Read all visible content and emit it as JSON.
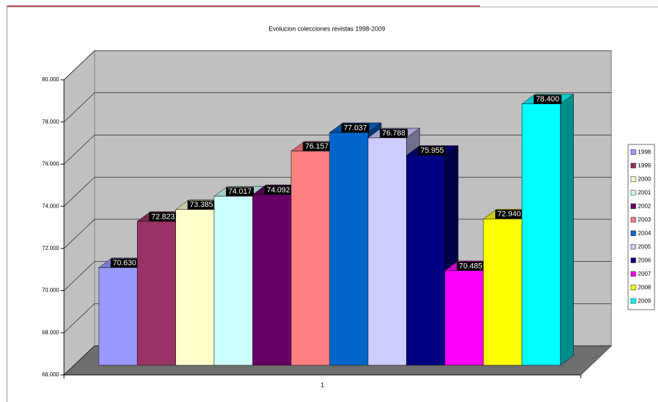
{
  "chart_data": {
    "type": "bar3d",
    "title": "Evolucion colecciones revistas 1998-2009",
    "categories": [
      "1"
    ],
    "ylim": [
      66000,
      80000
    ],
    "yticks": [
      {
        "value": 66000,
        "label": "66.000"
      },
      {
        "value": 68000,
        "label": "68.000"
      },
      {
        "value": 70000,
        "label": "70.000"
      },
      {
        "value": 72000,
        "label": "72.000"
      },
      {
        "value": 74000,
        "label": "74.000"
      },
      {
        "value": 76000,
        "label": "76.000"
      },
      {
        "value": 78000,
        "label": "78.000"
      },
      {
        "value": 80000,
        "label": "80.000"
      }
    ],
    "grid": true,
    "legend": "right",
    "series": [
      {
        "name": "1998",
        "color": "#9999ff",
        "values": [
          70630
        ],
        "value_labels": [
          "70.630"
        ]
      },
      {
        "name": "1999",
        "color": "#993366",
        "values": [
          72823
        ],
        "value_labels": [
          "72.823"
        ]
      },
      {
        "name": "2000",
        "color": "#ffffcc",
        "values": [
          73385
        ],
        "value_labels": [
          "73.385"
        ]
      },
      {
        "name": "2001",
        "color": "#ccffff",
        "values": [
          74017
        ],
        "value_labels": [
          "74.017"
        ]
      },
      {
        "name": "2002",
        "color": "#660066",
        "values": [
          74092
        ],
        "value_labels": [
          "74.092"
        ]
      },
      {
        "name": "2003",
        "color": "#ff8080",
        "values": [
          76157
        ],
        "value_labels": [
          "76.157"
        ]
      },
      {
        "name": "2004",
        "color": "#0066cc",
        "values": [
          77037
        ],
        "value_labels": [
          "77.037"
        ]
      },
      {
        "name": "2005",
        "color": "#ccccff",
        "values": [
          76788
        ],
        "value_labels": [
          "76.788"
        ]
      },
      {
        "name": "2006",
        "color": "#000080",
        "values": [
          75955
        ],
        "value_labels": [
          "75.955"
        ]
      },
      {
        "name": "2007",
        "color": "#ff00ff",
        "values": [
          70485
        ],
        "value_labels": [
          "70.485"
        ]
      },
      {
        "name": "2008",
        "color": "#ffff00",
        "values": [
          72940
        ],
        "value_labels": [
          "72.940"
        ]
      },
      {
        "name": "2009",
        "color": "#00ffff",
        "values": [
          78400
        ],
        "value_labels": [
          "78.400"
        ]
      }
    ]
  }
}
